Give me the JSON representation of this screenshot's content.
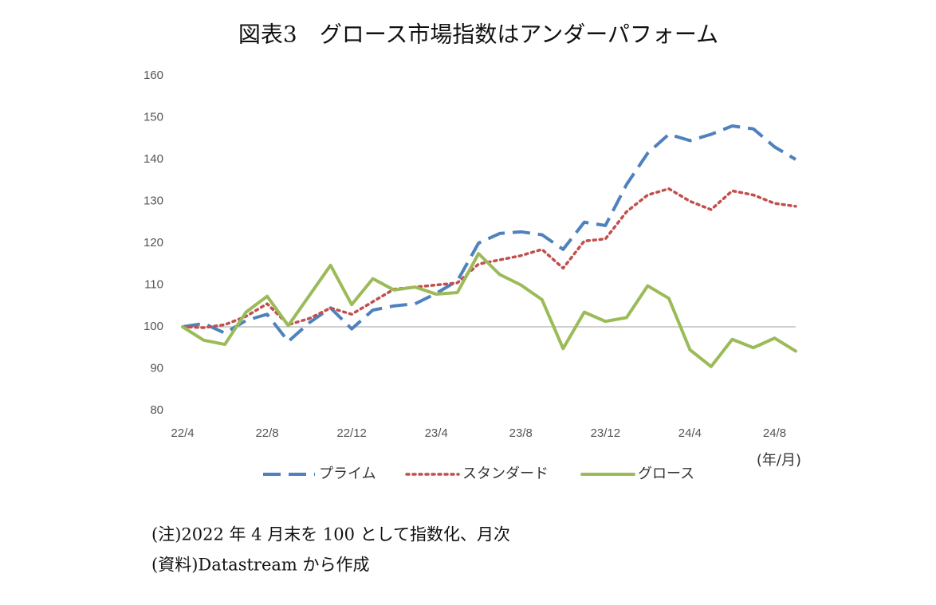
{
  "chart_data": {
    "type": "line",
    "title": "図表3　グロース市場指数はアンダーパフォーム",
    "x_unit": "(年/月)",
    "categories": [
      "22/4",
      null,
      null,
      null,
      "22/8",
      null,
      null,
      null,
      "22/12",
      null,
      null,
      null,
      "23/4",
      null,
      null,
      null,
      "23/8",
      null,
      null,
      null,
      "23/12",
      null,
      null,
      null,
      "24/4",
      null,
      null,
      null,
      "24/8",
      null
    ],
    "series": [
      {
        "name": "プライム",
        "color": "#4f81bd",
        "style": "dashed",
        "values": [
          100,
          100.8,
          98.5,
          101.5,
          103,
          96.5,
          101,
          104.5,
          99.5,
          104,
          105,
          105.5,
          108,
          111,
          120,
          122.3,
          122.7,
          122,
          118.5,
          125,
          124.2,
          134,
          141.5,
          146,
          144.5,
          146,
          148,
          147.3,
          143,
          140
        ]
      },
      {
        "name": "スタンダード",
        "color": "#c0504d",
        "style": "dotted",
        "values": [
          100,
          99.8,
          100.5,
          102.5,
          105.5,
          100.5,
          102,
          104.5,
          103,
          106,
          109,
          109.5,
          110,
          110.5,
          115,
          116,
          117,
          118.5,
          114,
          120.5,
          121,
          127.5,
          131.5,
          133,
          130,
          128,
          132.5,
          131.5,
          129.5,
          128.8
        ]
      },
      {
        "name": "グロース",
        "color": "#9bbb59",
        "style": "solid",
        "values": [
          100,
          96.8,
          95.8,
          103.5,
          107.3,
          100.3,
          107.5,
          114.7,
          105.3,
          111.5,
          108.8,
          109.5,
          107.8,
          108.2,
          117.5,
          112.5,
          110,
          106.5,
          94.8,
          103.5,
          101.3,
          102.2,
          109.8,
          106.8,
          94.5,
          90.5,
          97,
          95,
          97.3,
          94.2
        ]
      }
    ],
    "ylim": [
      80,
      160
    ],
    "yticks": [
      80,
      90,
      100,
      110,
      120,
      130,
      140,
      150,
      160
    ],
    "reference_line": 100,
    "legend": "bottom",
    "notes": [
      "(注)2022 年 4 月末を 100 として指数化、月次",
      "(資料)Datastream から作成"
    ]
  }
}
